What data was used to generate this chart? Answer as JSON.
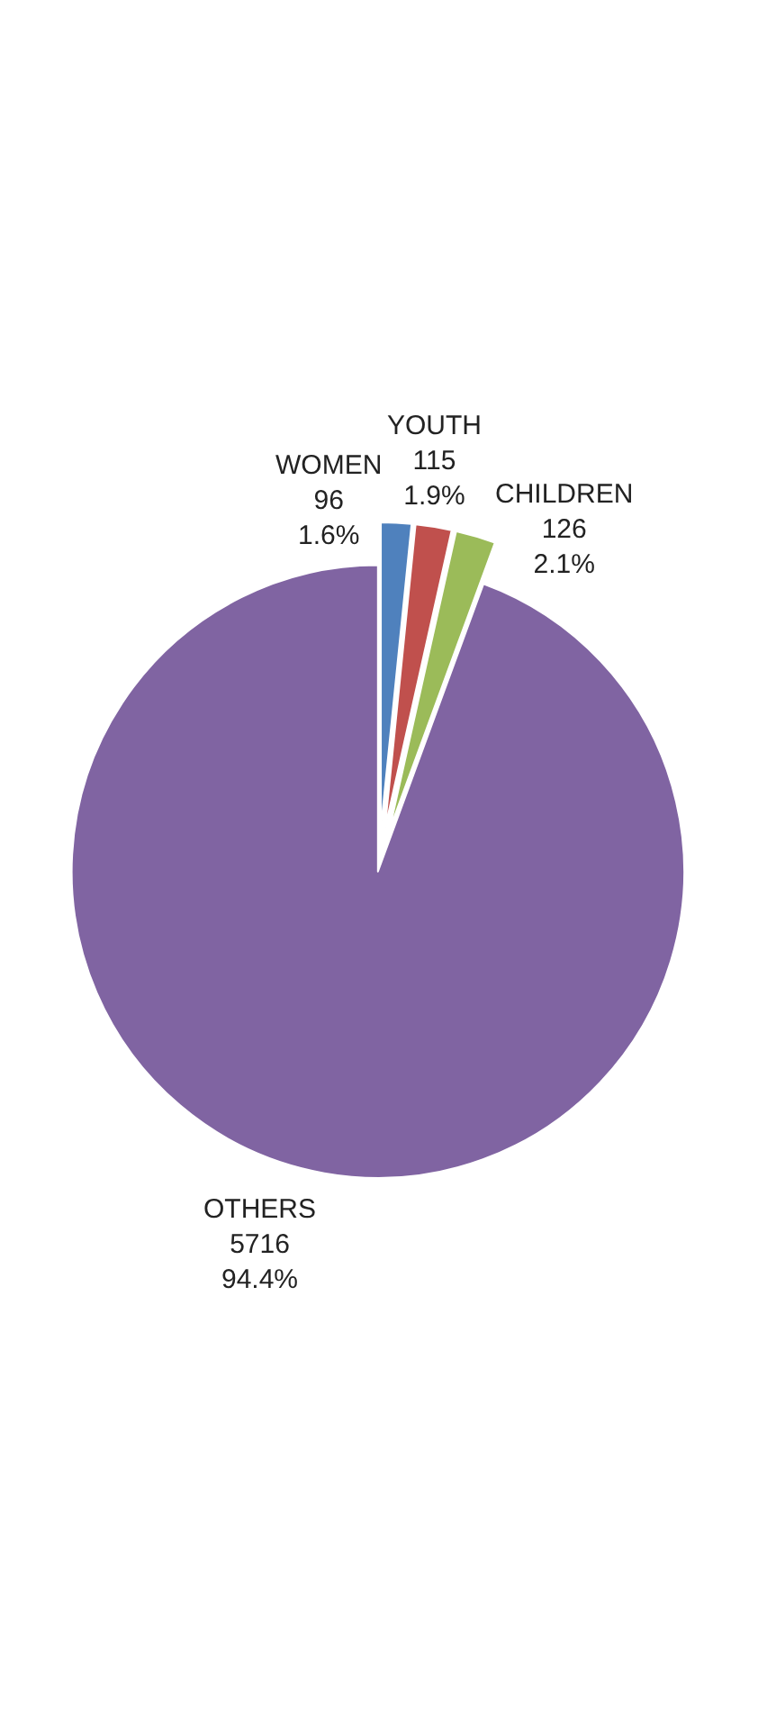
{
  "chart_data": {
    "type": "pie",
    "categories": [
      "WOMEN",
      "YOUTH",
      "CHILDREN",
      "OTHERS"
    ],
    "values": [
      1.6,
      1.9,
      2.1,
      94.4
    ],
    "colors": [
      "#4f81bd",
      "#c0504d",
      "#9bbb59",
      "#8064a2"
    ],
    "value_labels": [
      "96\n1.6%",
      "115\n1.9%",
      "126\n2.1%",
      "5716\n94.4%"
    ],
    "legend": false
  }
}
